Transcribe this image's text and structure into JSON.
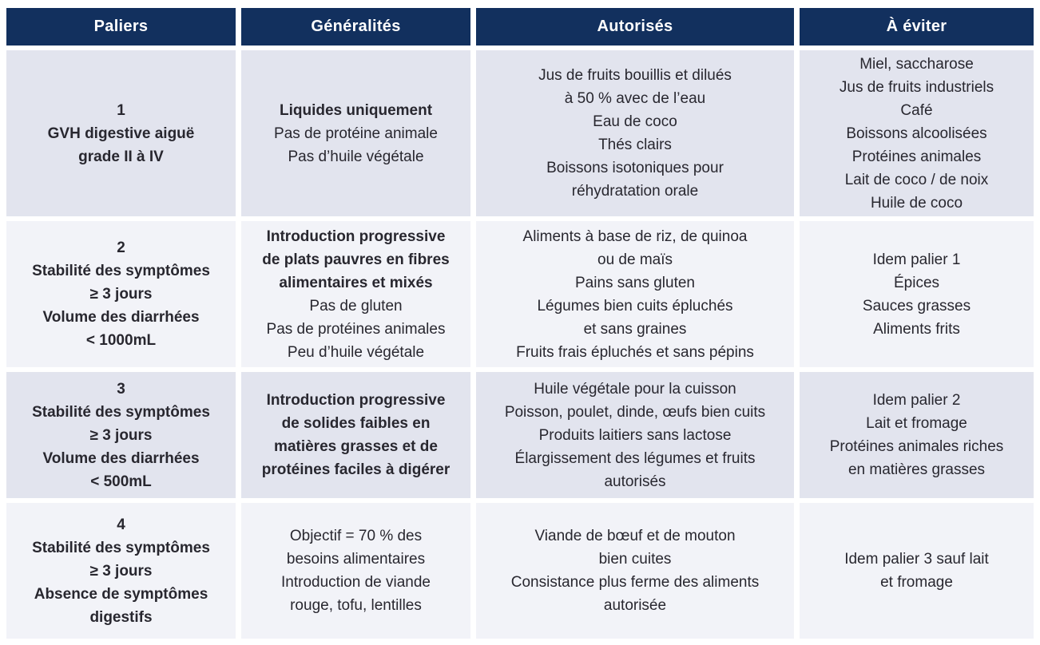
{
  "colors": {
    "header_bg": "#12305e",
    "header_text": "#ffffff",
    "row_dark_bg": "#e2e4ee",
    "row_light_bg": "#f2f3f8",
    "body_text": "#28272f",
    "page_bg": "#ffffff"
  },
  "table": {
    "headers": [
      {
        "label": "Paliers"
      },
      {
        "label": "Généralités"
      },
      {
        "label": "Autorisés"
      },
      {
        "label": "À éviter"
      }
    ],
    "rows": [
      {
        "cells": [
          {
            "column": "paliers",
            "lines": [
              {
                "t": "1",
                "b": true
              },
              {
                "t": "GVH digestive aiguë",
                "b": true
              },
              {
                "t": "grade II à IV",
                "b": true
              }
            ]
          },
          {
            "column": "generalites",
            "lines": [
              {
                "t": "Liquides uniquement",
                "b": true
              },
              {
                "t": "Pas de protéine animale",
                "b": false
              },
              {
                "t": "Pas d’huile végétale",
                "b": false
              }
            ]
          },
          {
            "column": "autorises",
            "lines": [
              {
                "t": "Jus de fruits bouillis et dilués",
                "b": false
              },
              {
                "t": "à 50 % avec de l’eau",
                "b": false
              },
              {
                "t": "Eau de coco",
                "b": false
              },
              {
                "t": "Thés clairs",
                "b": false
              },
              {
                "t": "Boissons isotoniques pour",
                "b": false
              },
              {
                "t": "réhydratation orale",
                "b": false
              }
            ]
          },
          {
            "column": "a-eviter",
            "lines": [
              {
                "t": "Miel, saccharose",
                "b": false
              },
              {
                "t": "Jus de fruits industriels",
                "b": false
              },
              {
                "t": "Café",
                "b": false
              },
              {
                "t": "Boissons alcoolisées",
                "b": false
              },
              {
                "t": "Protéines animales",
                "b": false
              },
              {
                "t": "Lait de coco / de noix",
                "b": false
              },
              {
                "t": "Huile de coco",
                "b": false
              }
            ]
          }
        ]
      },
      {
        "cells": [
          {
            "column": "paliers",
            "lines": [
              {
                "t": "2",
                "b": true
              },
              {
                "t": "Stabilité des symptômes",
                "b": true
              },
              {
                "t": "≥ 3 jours",
                "b": true
              },
              {
                "t": "Volume des diarrhées",
                "b": true
              },
              {
                "t": "< 1000mL",
                "b": true
              }
            ]
          },
          {
            "column": "generalites",
            "lines": [
              {
                "t": "Introduction progressive",
                "b": true
              },
              {
                "t": "de plats pauvres en fibres",
                "b": true
              },
              {
                "t": "alimentaires et mixés",
                "b": true
              },
              {
                "t": "Pas de gluten",
                "b": false
              },
              {
                "t": "Pas de protéines animales",
                "b": false
              },
              {
                "t": "Peu d’huile végétale",
                "b": false
              }
            ]
          },
          {
            "column": "autorises",
            "lines": [
              {
                "t": "Aliments à base de riz, de quinoa",
                "b": false
              },
              {
                "t": "ou de maïs",
                "b": false
              },
              {
                "t": "Pains sans gluten",
                "b": false
              },
              {
                "t": "Légumes bien cuits épluchés",
                "b": false
              },
              {
                "t": "et sans graines",
                "b": false
              },
              {
                "t": "Fruits frais épluchés et sans pépins",
                "b": false
              }
            ]
          },
          {
            "column": "a-eviter",
            "lines": [
              {
                "t": "Idem palier 1",
                "b": false
              },
              {
                "t": "Épices",
                "b": false
              },
              {
                "t": "Sauces grasses",
                "b": false
              },
              {
                "t": "Aliments frits",
                "b": false
              }
            ]
          }
        ]
      },
      {
        "cells": [
          {
            "column": "paliers",
            "lines": [
              {
                "t": "3",
                "b": true
              },
              {
                "t": "Stabilité des symptômes",
                "b": true
              },
              {
                "t": "≥ 3 jours",
                "b": true
              },
              {
                "t": "Volume des diarrhées",
                "b": true
              },
              {
                "t": "< 500mL",
                "b": true
              }
            ]
          },
          {
            "column": "generalites",
            "lines": [
              {
                "t": "Introduction progressive",
                "b": true
              },
              {
                "t": "de solides faibles en",
                "b": true
              },
              {
                "t": "matières grasses et de",
                "b": true
              },
              {
                "t": "protéines faciles à digérer",
                "b": true
              }
            ]
          },
          {
            "column": "autorises",
            "lines": [
              {
                "t": "Huile végétale pour la cuisson",
                "b": false
              },
              {
                "t": "Poisson, poulet, dinde, œufs bien cuits",
                "b": false
              },
              {
                "t": "Produits laitiers sans lactose",
                "b": false
              },
              {
                "t": "Élargissement des légumes et fruits",
                "b": false
              },
              {
                "t": "autorisés",
                "b": false
              }
            ]
          },
          {
            "column": "a-eviter",
            "lines": [
              {
                "t": "Idem palier 2",
                "b": false
              },
              {
                "t": "Lait et fromage",
                "b": false
              },
              {
                "t": "Protéines animales riches",
                "b": false
              },
              {
                "t": "en matières grasses",
                "b": false
              }
            ]
          }
        ]
      },
      {
        "cells": [
          {
            "column": "paliers",
            "lines": [
              {
                "t": "4",
                "b": true
              },
              {
                "t": "Stabilité des symptômes",
                "b": true
              },
              {
                "t": "≥ 3 jours",
                "b": true
              },
              {
                "t": "Absence de symptômes",
                "b": true
              },
              {
                "t": "digestifs",
                "b": true
              }
            ]
          },
          {
            "column": "generalites",
            "lines": [
              {
                "t": "Objectif = 70 % des",
                "b": false
              },
              {
                "t": "besoins alimentaires",
                "b": false
              },
              {
                "t": "Introduction de viande",
                "b": false
              },
              {
                "t": "rouge, tofu, lentilles",
                "b": false
              }
            ]
          },
          {
            "column": "autorises",
            "lines": [
              {
                "t": "Viande de bœuf et de mouton",
                "b": false
              },
              {
                "t": "bien cuites",
                "b": false
              },
              {
                "t": "Consistance plus ferme des aliments",
                "b": false
              },
              {
                "t": "autorisée",
                "b": false
              }
            ]
          },
          {
            "column": "a-eviter",
            "lines": [
              {
                "t": "Idem palier 3 sauf lait",
                "b": false
              },
              {
                "t": "et fromage",
                "b": false
              }
            ]
          }
        ]
      }
    ]
  }
}
